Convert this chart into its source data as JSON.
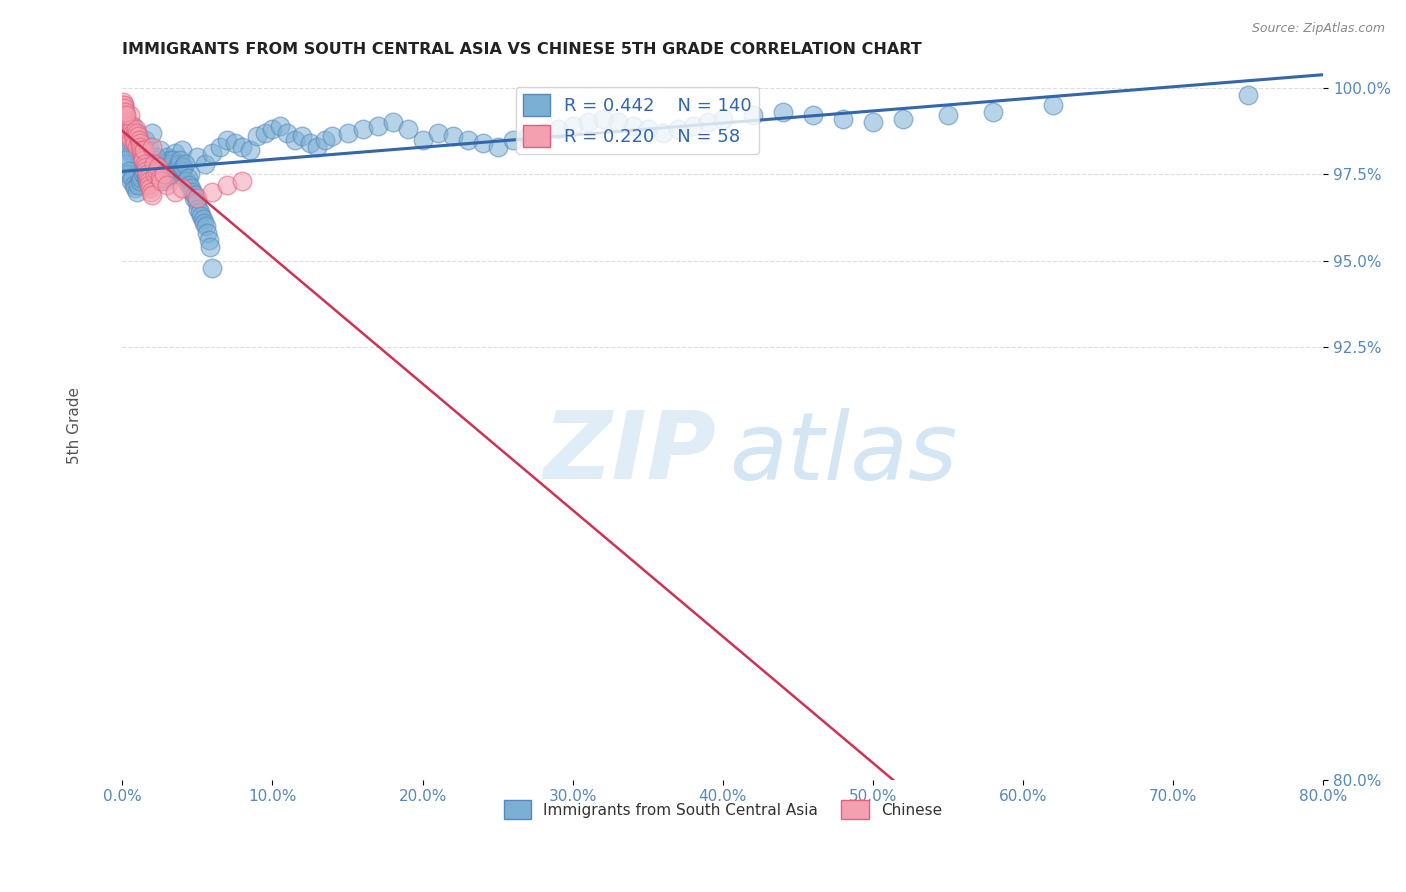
{
  "title": "IMMIGRANTS FROM SOUTH CENTRAL ASIA VS CHINESE 5TH GRADE CORRELATION CHART",
  "source": "Source: ZipAtlas.com",
  "ylabel": "5th Grade",
  "x_tick_labels": [
    "0.0%",
    "10.0%",
    "20.0%",
    "30.0%",
    "40.0%",
    "50.0%",
    "60.0%",
    "70.0%",
    "80.0%"
  ],
  "x_tick_vals": [
    0.0,
    10.0,
    20.0,
    30.0,
    40.0,
    50.0,
    60.0,
    70.0,
    80.0
  ],
  "y_tick_labels": [
    "80.0%",
    "92.5%",
    "95.0%",
    "97.5%",
    "100.0%"
  ],
  "y_tick_vals": [
    80.0,
    92.5,
    95.0,
    97.5,
    100.0
  ],
  "xlim": [
    0.0,
    80.0
  ],
  "ylim": [
    80.0,
    100.5
  ],
  "blue_color": "#7BAFD4",
  "pink_color": "#F4A0B0",
  "blue_edge_color": "#5588BB",
  "pink_edge_color": "#E06080",
  "blue_line_color": "#3366AA",
  "pink_line_color": "#CC3355",
  "legend_blue_R": "0.442",
  "legend_blue_N": "140",
  "legend_pink_R": "0.220",
  "legend_pink_N": "58",
  "blue_label": "Immigrants from South Central Asia",
  "pink_label": "Chinese",
  "watermark_zip": "ZIP",
  "watermark_atlas": "atlas",
  "title_color": "#222222",
  "axis_color": "#5588BB",
  "source_color": "#888888",
  "grid_color": "#dddddd",
  "blue_scatter_x": [
    0.2,
    0.3,
    0.1,
    0.5,
    0.4,
    0.8,
    1.0,
    1.2,
    0.6,
    0.7,
    1.5,
    1.8,
    2.0,
    1.1,
    0.9,
    1.3,
    1.6,
    1.4,
    2.2,
    2.5,
    3.0,
    3.5,
    2.8,
    3.2,
    4.0,
    4.5,
    5.0,
    5.5,
    6.0,
    6.5,
    7.0,
    7.5,
    8.0,
    8.5,
    9.0,
    9.5,
    10.0,
    10.5,
    11.0,
    11.5,
    12.0,
    12.5,
    13.0,
    13.5,
    14.0,
    15.0,
    16.0,
    17.0,
    18.0,
    19.0,
    20.0,
    21.0,
    22.0,
    23.0,
    24.0,
    25.0,
    26.0,
    27.0,
    28.0,
    29.0,
    30.0,
    31.0,
    32.0,
    33.0,
    34.0,
    35.0,
    36.0,
    37.0,
    38.0,
    39.0,
    40.0,
    42.0,
    44.0,
    46.0,
    48.0,
    50.0,
    52.0,
    55.0,
    58.0,
    62.0,
    0.15,
    0.25,
    0.35,
    0.45,
    0.55,
    0.65,
    0.75,
    0.85,
    0.95,
    1.05,
    1.15,
    1.25,
    1.35,
    1.45,
    1.55,
    1.65,
    1.75,
    1.85,
    1.95,
    2.05,
    2.15,
    2.25,
    2.35,
    2.45,
    2.55,
    2.65,
    2.75,
    2.85,
    2.95,
    3.05,
    3.15,
    3.25,
    3.35,
    3.45,
    3.55,
    3.65,
    3.75,
    3.85,
    3.95,
    4.05,
    4.15,
    4.25,
    4.35,
    4.45,
    4.55,
    4.65,
    4.75,
    4.85,
    4.95,
    5.05,
    5.15,
    5.25,
    5.35,
    5.45,
    5.55,
    5.65,
    5.75,
    5.85,
    5.95,
    75.0
  ],
  "blue_scatter_y": [
    98.5,
    99.0,
    98.8,
    98.2,
    98.6,
    98.3,
    98.7,
    98.4,
    98.1,
    98.9,
    98.5,
    98.3,
    98.7,
    97.8,
    97.5,
    97.9,
    98.0,
    97.6,
    97.7,
    98.2,
    98.0,
    98.1,
    97.8,
    97.9,
    98.2,
    97.5,
    98.0,
    97.8,
    98.1,
    98.3,
    98.5,
    98.4,
    98.3,
    98.2,
    98.6,
    98.7,
    98.8,
    98.9,
    98.7,
    98.5,
    98.6,
    98.4,
    98.3,
    98.5,
    98.6,
    98.7,
    98.8,
    98.9,
    99.0,
    98.8,
    98.5,
    98.7,
    98.6,
    98.5,
    98.4,
    98.3,
    98.5,
    98.6,
    98.7,
    98.8,
    98.9,
    99.0,
    99.1,
    99.0,
    98.9,
    98.8,
    98.7,
    98.8,
    98.9,
    99.0,
    99.1,
    99.2,
    99.3,
    99.2,
    99.1,
    99.0,
    99.1,
    99.2,
    99.3,
    99.5,
    97.8,
    97.9,
    97.5,
    97.6,
    97.3,
    97.4,
    97.2,
    97.1,
    97.0,
    97.2,
    97.3,
    97.4,
    97.5,
    97.6,
    97.4,
    97.3,
    97.2,
    97.5,
    97.6,
    97.8,
    97.9,
    98.0,
    97.7,
    97.6,
    97.5,
    97.4,
    97.3,
    97.4,
    97.5,
    97.6,
    97.7,
    97.8,
    97.9,
    97.5,
    97.6,
    97.7,
    97.8,
    97.9,
    97.6,
    97.7,
    97.8,
    97.3,
    97.4,
    97.2,
    97.1,
    97.0,
    96.8,
    96.9,
    96.7,
    96.5,
    96.4,
    96.3,
    96.2,
    96.1,
    96.0,
    95.8,
    95.6,
    95.4,
    94.8,
    99.8
  ],
  "pink_scatter_x": [
    0.1,
    0.15,
    0.2,
    0.25,
    0.3,
    0.35,
    0.4,
    0.45,
    0.5,
    0.55,
    0.6,
    0.65,
    0.7,
    0.75,
    0.8,
    0.85,
    0.9,
    0.95,
    1.0,
    1.05,
    1.1,
    1.15,
    1.2,
    1.25,
    1.3,
    1.35,
    1.4,
    1.45,
    1.5,
    1.55,
    1.6,
    1.65,
    1.7,
    1.75,
    1.8,
    1.85,
    1.9,
    1.95,
    2.0,
    2.1,
    2.2,
    2.3,
    2.4,
    2.5,
    2.6,
    2.8,
    3.0,
    3.5,
    4.0,
    5.0,
    6.0,
    7.0,
    8.0,
    0.05,
    0.08,
    0.12,
    0.18,
    0.22
  ],
  "pink_scatter_y": [
    99.5,
    99.3,
    99.2,
    99.1,
    99.0,
    98.8,
    98.7,
    98.6,
    99.2,
    98.5,
    98.9,
    98.8,
    98.7,
    98.6,
    98.5,
    98.4,
    98.8,
    98.3,
    98.7,
    98.6,
    98.5,
    98.4,
    98.3,
    98.2,
    98.1,
    98.0,
    97.9,
    98.2,
    97.8,
    97.7,
    97.6,
    97.5,
    97.4,
    97.3,
    97.2,
    97.1,
    97.0,
    96.9,
    98.3,
    97.8,
    97.5,
    97.6,
    97.7,
    97.4,
    97.3,
    97.5,
    97.2,
    97.0,
    97.1,
    96.8,
    97.0,
    97.2,
    97.3,
    99.6,
    99.5,
    99.4,
    99.3,
    99.2
  ]
}
